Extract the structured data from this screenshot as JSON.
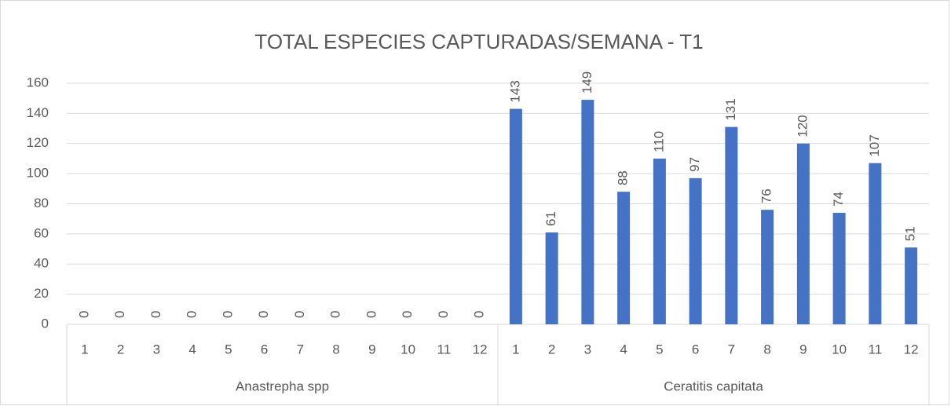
{
  "chart_data": {
    "type": "bar",
    "title": "TOTAL  ESPECIES CAPTURADAS/SEMANA  - T1",
    "groups": [
      {
        "name": "Anastrepha spp",
        "categories": [
          "1",
          "2",
          "3",
          "4",
          "5",
          "6",
          "7",
          "8",
          "9",
          "10",
          "11",
          "12"
        ]
      },
      {
        "name": "Ceratitis capitata",
        "categories": [
          "1",
          "2",
          "3",
          "4",
          "5",
          "6",
          "7",
          "8",
          "9",
          "10",
          "11",
          "12"
        ]
      }
    ],
    "values": [
      0,
      0,
      0,
      0,
      0,
      0,
      0,
      0,
      0,
      0,
      0,
      0,
      143,
      61,
      149,
      88,
      110,
      97,
      131,
      76,
      120,
      74,
      107,
      51
    ],
    "color": "#4472c4",
    "ylim": [
      0,
      160
    ],
    "yticks": [
      0,
      20,
      40,
      60,
      80,
      100,
      120,
      140,
      160
    ],
    "grid": true
  }
}
